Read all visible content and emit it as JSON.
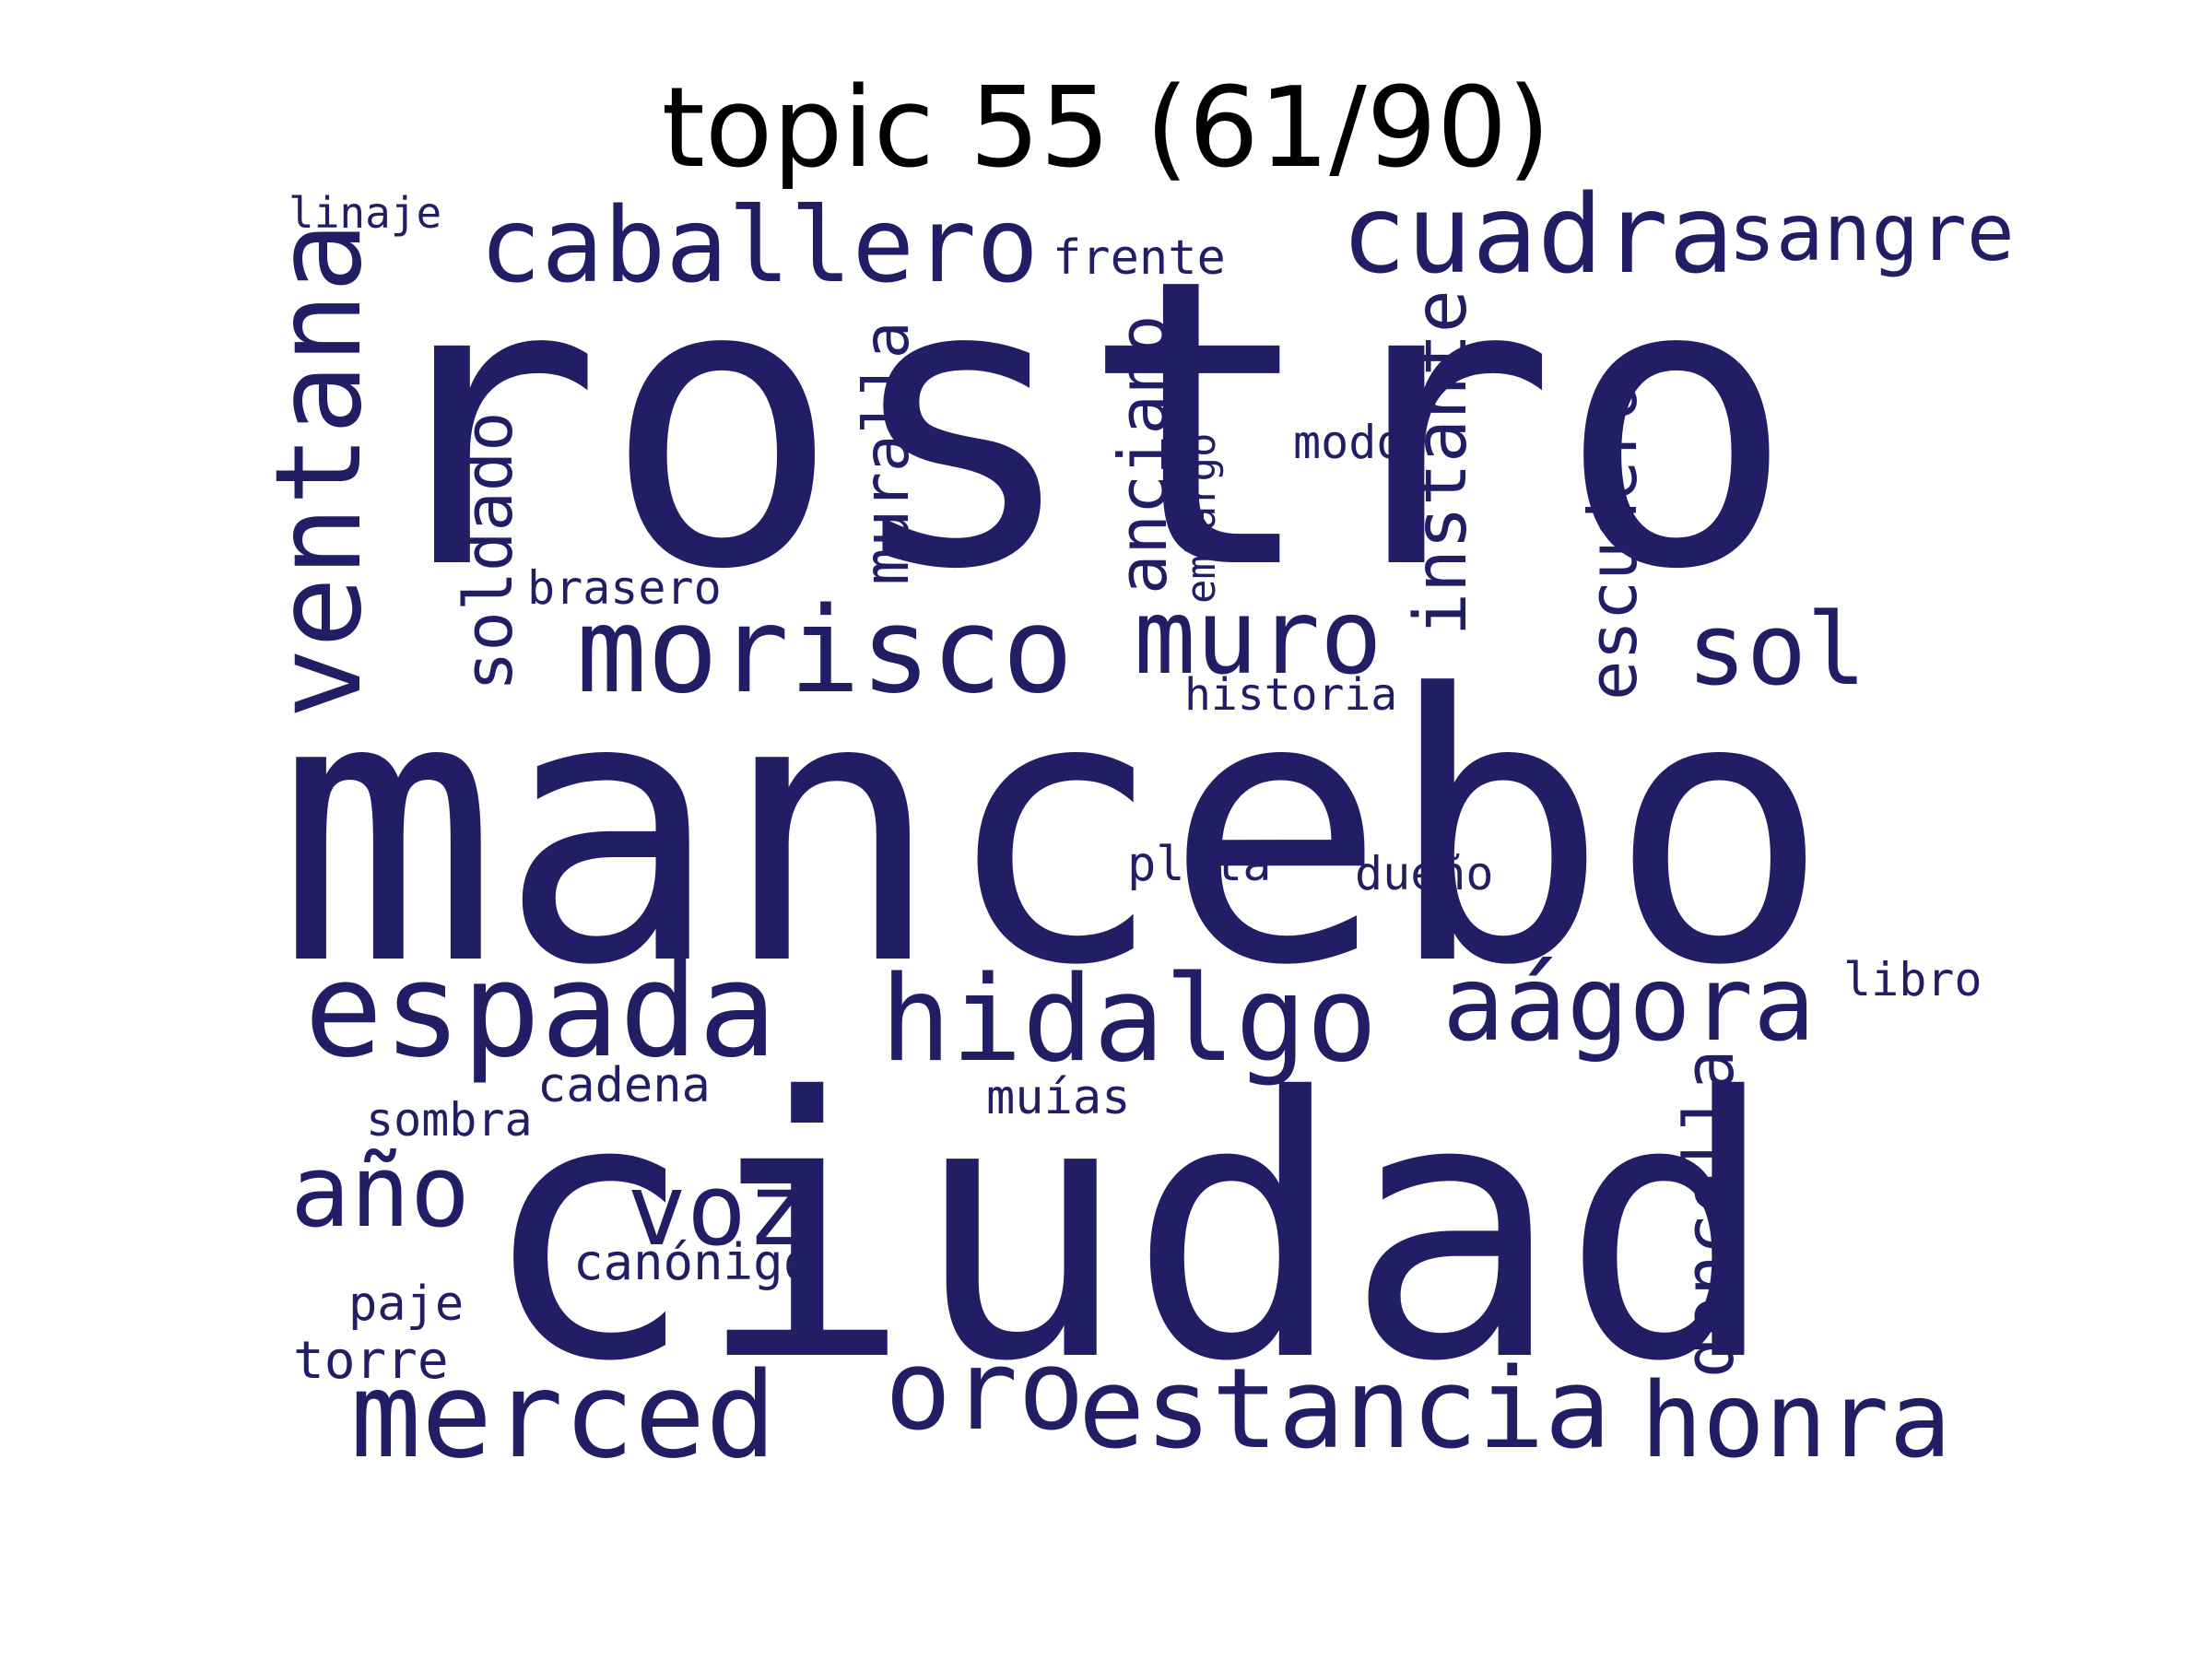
{
  "title": "topic 55 (61/90)",
  "word_color": "#221e65",
  "title_color": "#000000",
  "words": [
    {
      "text": "rostro",
      "weight": 1.0,
      "vertical": false
    },
    {
      "text": "mancebo",
      "weight": 0.97,
      "vertical": false
    },
    {
      "text": "ciudad",
      "weight": 0.93,
      "vertical": false
    },
    {
      "text": "caballero",
      "weight": 0.32,
      "vertical": false
    },
    {
      "text": "cuadra",
      "weight": 0.33,
      "vertical": false
    },
    {
      "text": "sangre",
      "weight": 0.25,
      "vertical": false
    },
    {
      "text": "ventana",
      "weight": 0.36,
      "vertical": true
    },
    {
      "text": "morisco",
      "weight": 0.36,
      "vertical": false
    },
    {
      "text": "muro",
      "weight": 0.31,
      "vertical": false
    },
    {
      "text": "sol",
      "weight": 0.3,
      "vertical": false
    },
    {
      "text": "espada",
      "weight": 0.4,
      "vertical": false
    },
    {
      "text": "hidalgo",
      "weight": 0.36,
      "vertical": false
    },
    {
      "text": "aágora",
      "weight": 0.32,
      "vertical": false
    },
    {
      "text": "año",
      "weight": 0.3,
      "vertical": false
    },
    {
      "text": "voz",
      "weight": 0.31,
      "vertical": false
    },
    {
      "text": "merced",
      "weight": 0.36,
      "vertical": false
    },
    {
      "text": "oro",
      "weight": 0.34,
      "vertical": false
    },
    {
      "text": "estancia",
      "weight": 0.34,
      "vertical": false
    },
    {
      "text": "honra",
      "weight": 0.31,
      "vertical": false
    },
    {
      "text": "soldado",
      "weight": 0.2,
      "vertical": true
    },
    {
      "text": "muralla",
      "weight": 0.19,
      "vertical": true
    },
    {
      "text": "anciano",
      "weight": 0.21,
      "vertical": true
    },
    {
      "text": "instante",
      "weight": 0.23,
      "vertical": true
    },
    {
      "text": "escudero",
      "weight": 0.2,
      "vertical": true
    },
    {
      "text": "doncella",
      "weight": 0.21,
      "vertical": true
    },
    {
      "text": "embargo",
      "weight": 0.12,
      "vertical": true
    },
    {
      "text": "linaje",
      "weight": 0.13,
      "vertical": false
    },
    {
      "text": "frente",
      "weight": 0.14,
      "vertical": false
    },
    {
      "text": "modo",
      "weight": 0.14,
      "vertical": false
    },
    {
      "text": "brasero",
      "weight": 0.14,
      "vertical": false
    },
    {
      "text": "historia",
      "weight": 0.13,
      "vertical": false
    },
    {
      "text": "plata",
      "weight": 0.15,
      "vertical": false
    },
    {
      "text": "dueño",
      "weight": 0.14,
      "vertical": false
    },
    {
      "text": "libro",
      "weight": 0.14,
      "vertical": false
    },
    {
      "text": "cadena",
      "weight": 0.15,
      "vertical": false
    },
    {
      "text": "muías",
      "weight": 0.14,
      "vertical": false
    },
    {
      "text": "sombra",
      "weight": 0.14,
      "vertical": false
    },
    {
      "text": "canónigo",
      "weight": 0.15,
      "vertical": false
    },
    {
      "text": "paje",
      "weight": 0.15,
      "vertical": false
    },
    {
      "text": "torre",
      "weight": 0.15,
      "vertical": false
    }
  ]
}
